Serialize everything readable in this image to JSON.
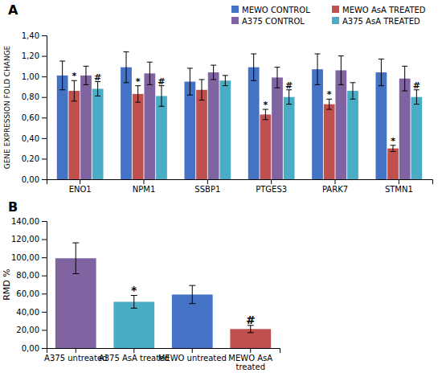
{
  "chart_data": [
    {
      "type": "bar",
      "title": "A",
      "ylabel": "GENE EXPRESSION FOLD CHANGE",
      "categories": [
        "ENO1",
        "NPM1",
        "SSBP1",
        "PTGES3",
        "PARK7",
        "STMN1"
      ],
      "series": [
        {
          "name": "MEWO CONTROL",
          "color": "#4472C4",
          "values": [
            1.01,
            1.09,
            0.95,
            1.09,
            1.07,
            1.04
          ],
          "errors": [
            0.14,
            0.15,
            0.13,
            0.13,
            0.15,
            0.13
          ]
        },
        {
          "name": "MEWO AsA TREATED",
          "color": "#C0504D",
          "values": [
            0.86,
            0.83,
            0.87,
            0.63,
            0.73,
            0.3
          ],
          "errors": [
            0.1,
            0.08,
            0.1,
            0.05,
            0.05,
            0.03
          ],
          "annotations": [
            "*",
            "*",
            null,
            "*",
            "*",
            "*"
          ]
        },
        {
          "name": "A375 CONTROL",
          "color": "#8064A2",
          "values": [
            1.01,
            1.03,
            1.04,
            0.99,
            1.06,
            0.98
          ],
          "errors": [
            0.09,
            0.11,
            0.07,
            0.1,
            0.14,
            0.12
          ]
        },
        {
          "name": "A375 AsA TREATED",
          "color": "#4BACC6",
          "values": [
            0.88,
            0.81,
            0.96,
            0.8,
            0.86,
            0.8
          ],
          "errors": [
            0.07,
            0.1,
            0.05,
            0.07,
            0.08,
            0.07
          ],
          "annotations": [
            "#",
            "#",
            null,
            "#",
            null,
            "#"
          ]
        }
      ],
      "ylim": [
        0.0,
        1.4
      ],
      "yticks": [
        {
          "value": 0.0,
          "label": "0,00"
        },
        {
          "value": 0.2,
          "label": "0,20"
        },
        {
          "value": 0.4,
          "label": "0,40"
        },
        {
          "value": 0.6,
          "label": "0,60"
        },
        {
          "value": 0.8,
          "label": "0,80"
        },
        {
          "value": 1.0,
          "label": "1,00"
        },
        {
          "value": 1.2,
          "label": "1,20"
        },
        {
          "value": 1.4,
          "label": "1,40"
        }
      ],
      "legend": "upper right"
    },
    {
      "type": "bar",
      "title": "B",
      "ylabel": "RMD %",
      "categories": [
        "A375 untreated",
        "A375 AsA treated",
        "MEWO untreated",
        "MEWO AsA\ntreated"
      ],
      "values": [
        99.0,
        51.0,
        59.0,
        21.0
      ],
      "errors": [
        17.0,
        7.0,
        10.0,
        4.0
      ],
      "colors": [
        "#8064A2",
        "#4BACC6",
        "#4472C4",
        "#C0504D"
      ],
      "annotations": [
        null,
        "*",
        null,
        "#"
      ],
      "ylim": [
        0.0,
        140.0
      ],
      "yticks": [
        {
          "value": 0,
          "label": "0,00"
        },
        {
          "value": 20,
          "label": "20,00"
        },
        {
          "value": 40,
          "label": "40,00"
        },
        {
          "value": 60,
          "label": "60,00"
        },
        {
          "value": 80,
          "label": "80,00"
        },
        {
          "value": 100,
          "label": "100,00"
        },
        {
          "value": 120,
          "label": "120,00"
        },
        {
          "value": 140,
          "label": "140,00"
        }
      ]
    }
  ]
}
